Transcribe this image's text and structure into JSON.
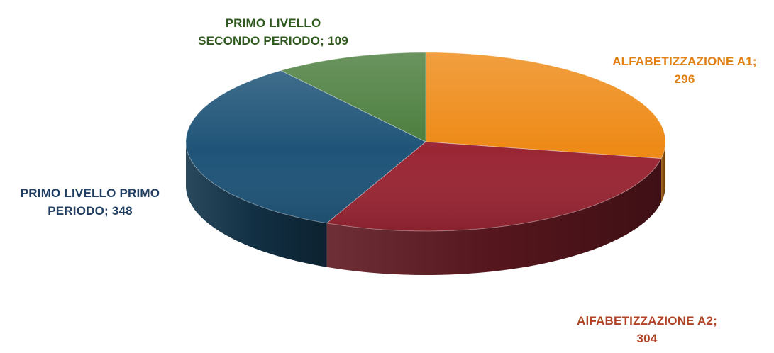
{
  "chart_data": {
    "type": "pie",
    "style": "3d",
    "categories": [
      "ALFABETIZZAZIONE A1",
      "AlFABETIZZAZIONE A2",
      "PRIMO LIVELLO PRIMO PERIODO",
      "PRIMO LIVELLO SECONDO PERIODO"
    ],
    "values": [
      296,
      304,
      348,
      109
    ],
    "colors": [
      "#ee8a16",
      "#9a2634",
      "#1f5478",
      "#4a7d3c"
    ],
    "label_colors": [
      "#e07f12",
      "#b04226",
      "#213f63",
      "#2f5a1d"
    ],
    "labels": [
      {
        "lines": [
          "ALFABETIZZAZIONE A1;",
          "296"
        ]
      },
      {
        "lines": [
          "AlFABETIZZAZIONE A2;",
          "304"
        ]
      },
      {
        "lines": [
          "PRIMO LIVELLO PRIMO",
          "PERIODO; 348"
        ]
      },
      {
        "lines": [
          "PRIMO LIVELLO",
          "SECONDO PERIODO; 109"
        ]
      }
    ],
    "start": "12 o'clock",
    "direction": "clockwise",
    "legend": "none",
    "data_labels": "outside"
  }
}
